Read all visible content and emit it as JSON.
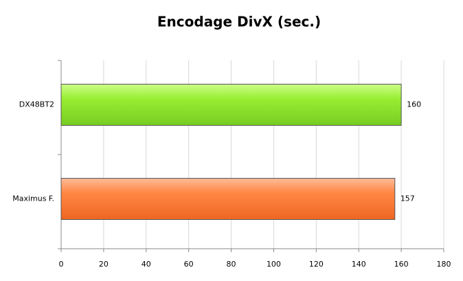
{
  "chart_data": {
    "type": "barh",
    "title": "Encodage DivX (sec.)",
    "categories": [
      "DX48BT2",
      "Maximus F."
    ],
    "values": [
      160,
      157
    ],
    "colors": [
      "#99ee33",
      "#ff8844"
    ],
    "xlim": [
      0,
      180
    ],
    "xticks": [
      0,
      20,
      40,
      60,
      80,
      100,
      120,
      140,
      160,
      180
    ],
    "grid": true
  }
}
